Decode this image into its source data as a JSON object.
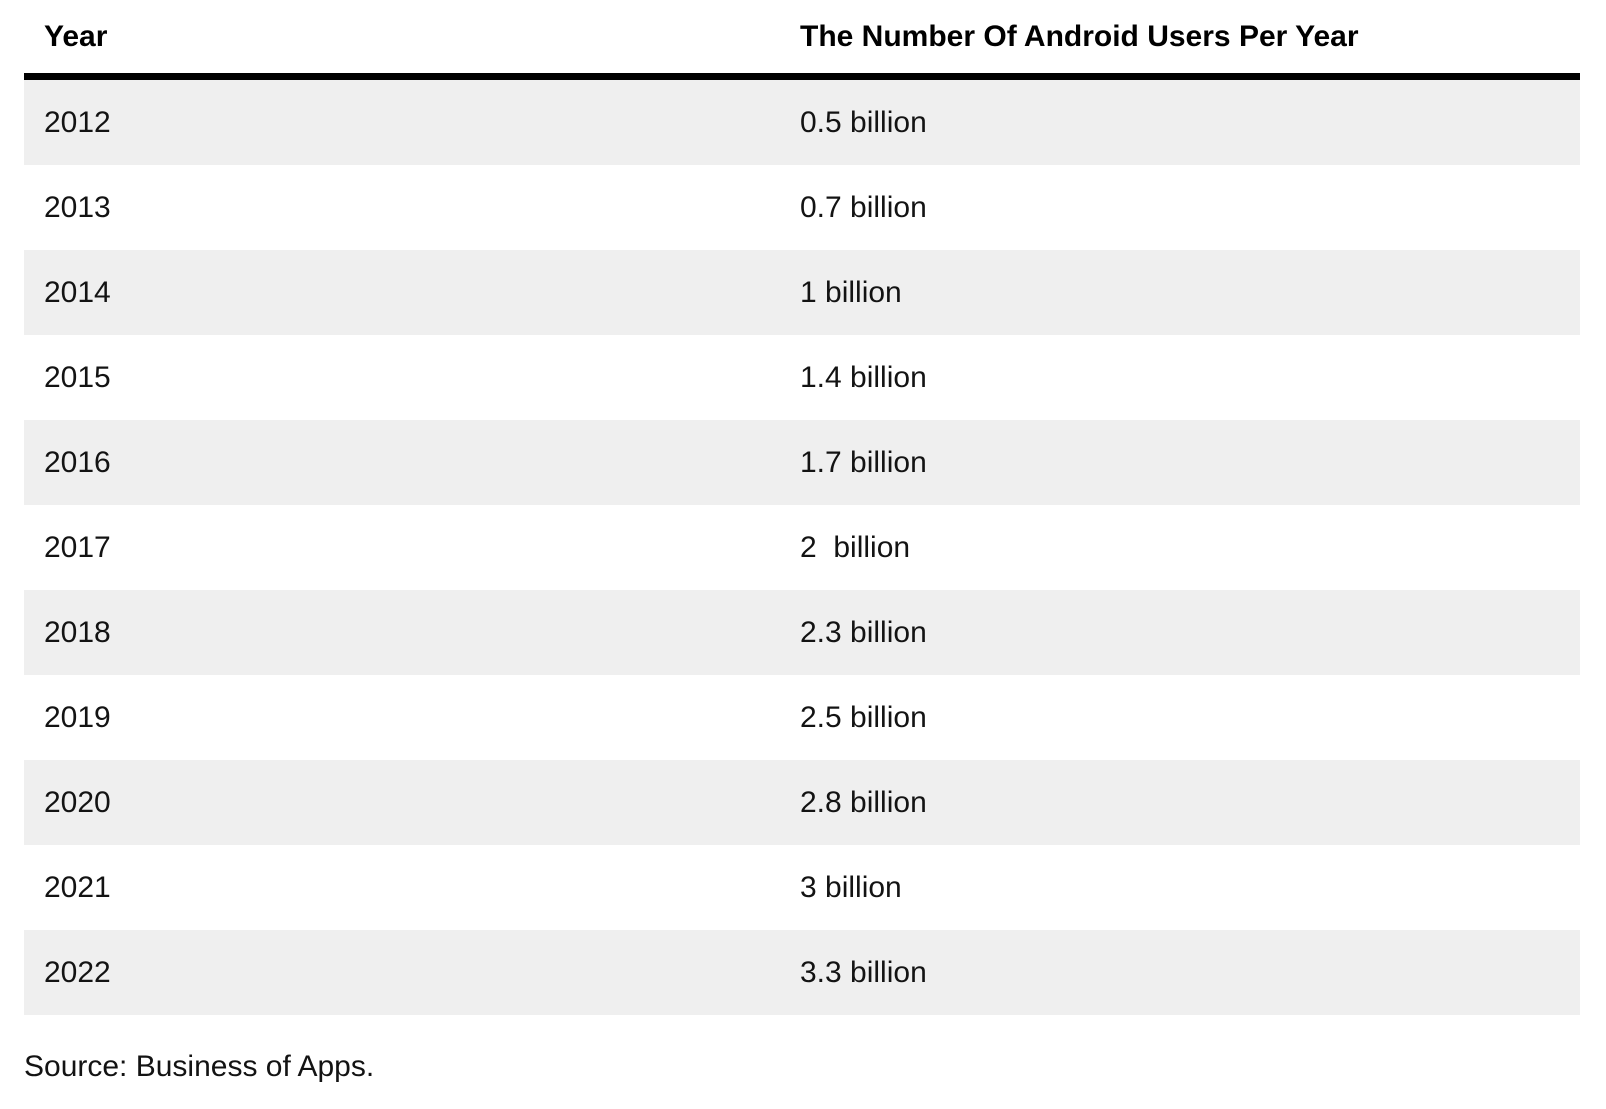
{
  "table": {
    "header": {
      "year_label": "Year",
      "users_label": "The Number Of Android Users Per Year"
    },
    "rows": [
      {
        "year": "2012",
        "users": "0.5 billion"
      },
      {
        "year": "2013",
        "users": "0.7 billion"
      },
      {
        "year": "2014",
        "users": "1 billion"
      },
      {
        "year": "2015",
        "users": "1.4 billion"
      },
      {
        "year": "2016",
        "users": "1.7 billion"
      },
      {
        "year": "2017",
        "users": "2  billion"
      },
      {
        "year": "2018",
        "users": "2.3 billion"
      },
      {
        "year": "2019",
        "users": "2.5 billion"
      },
      {
        "year": "2020",
        "users": "2.8 billion"
      },
      {
        "year": "2021",
        "users": "3 billion"
      },
      {
        "year": "2022",
        "users": "3.3 billion"
      }
    ],
    "colors": {
      "stripe": "#efefef",
      "header_rule": "#000000",
      "text": "#131313"
    }
  },
  "source_note": "Source: Business of Apps.",
  "chart_data": {
    "type": "table",
    "title": "The Number Of Android Users Per Year",
    "columns": [
      "Year",
      "The Number Of Android Users Per Year"
    ],
    "categories": [
      "2012",
      "2013",
      "2014",
      "2015",
      "2016",
      "2017",
      "2018",
      "2019",
      "2020",
      "2021",
      "2022"
    ],
    "values": [
      0.5,
      0.7,
      1,
      1.4,
      1.7,
      2,
      2.3,
      2.5,
      2.8,
      3,
      3.3
    ],
    "unit": "billion",
    "source": "Source: Business of Apps."
  }
}
